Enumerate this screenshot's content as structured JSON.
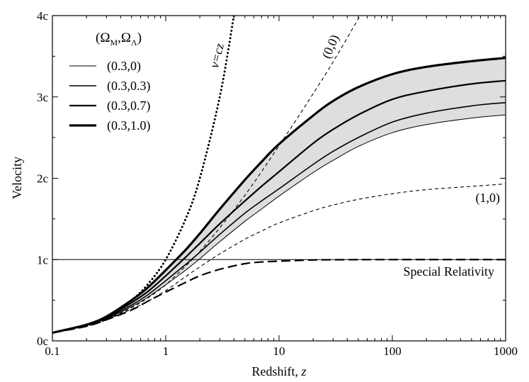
{
  "chart_data": {
    "type": "line",
    "xscale": "log",
    "xlim": [
      0.1,
      1000
    ],
    "ylim": [
      0,
      4
    ],
    "xlabel": "Redshift, ",
    "xlabel_var": "z",
    "ylabel": "Velocity",
    "x_ticks": [
      {
        "value": 0.1,
        "label": "0.1"
      },
      {
        "value": 1,
        "label": "1"
      },
      {
        "value": 10,
        "label": "10"
      },
      {
        "value": 100,
        "label": "100"
      },
      {
        "value": 1000,
        "label": "1000"
      }
    ],
    "y_ticks": [
      {
        "value": 0,
        "label": "0c"
      },
      {
        "value": 1,
        "label": "1c"
      },
      {
        "value": 2,
        "label": "2c"
      },
      {
        "value": 3,
        "label": "3c"
      },
      {
        "value": 4,
        "label": "4c"
      }
    ],
    "legend": {
      "title": "(Ω",
      "title_sub1": "M",
      "title_mid": ",Ω",
      "title_sub2": "Λ",
      "title_end": ")",
      "placement": "top-left",
      "entries": [
        "(0.3,0)",
        "(0.3,0.3)",
        "(0.3,0.7)",
        "(0.3,1.0)"
      ]
    },
    "shaded_band": {
      "between": [
        "(0.3,0)",
        "(0.3,1.0)"
      ],
      "color": "#dedede"
    },
    "annotations": [
      {
        "text": "v=cz",
        "series": "v=cz"
      },
      {
        "text": "(0,0)",
        "series": "(0,0)"
      },
      {
        "text": "(1,0)",
        "series": "(1,0)"
      },
      {
        "text": "Special Relativity",
        "series": "Special Relativity"
      }
    ],
    "series": [
      {
        "name": "(0.3,0)",
        "style": "solid",
        "width": 1.0,
        "x": [
          0.1,
          0.2,
          0.3,
          0.5,
          0.7,
          1,
          1.5,
          2,
          3,
          5,
          7,
          10,
          20,
          30,
          50,
          100,
          200,
          500,
          1000
        ],
        "y": [
          0.1,
          0.19,
          0.27,
          0.42,
          0.54,
          0.69,
          0.87,
          1.01,
          1.22,
          1.47,
          1.62,
          1.78,
          2.07,
          2.22,
          2.39,
          2.56,
          2.66,
          2.74,
          2.78
        ]
      },
      {
        "name": "(0.3,0.3)",
        "style": "solid",
        "width": 1.6,
        "x": [
          0.1,
          0.2,
          0.3,
          0.5,
          0.7,
          1,
          1.5,
          2,
          3,
          5,
          7,
          10,
          20,
          30,
          50,
          100,
          200,
          500,
          1000
        ],
        "y": [
          0.1,
          0.19,
          0.28,
          0.44,
          0.57,
          0.74,
          0.94,
          1.09,
          1.31,
          1.57,
          1.72,
          1.87,
          2.17,
          2.33,
          2.5,
          2.69,
          2.8,
          2.89,
          2.93
        ]
      },
      {
        "name": "(0.3,0.7)",
        "style": "solid",
        "width": 2.2,
        "x": [
          0.1,
          0.2,
          0.3,
          0.5,
          0.7,
          1,
          1.5,
          2,
          3,
          5,
          7,
          10,
          20,
          30,
          50,
          100,
          200,
          500,
          1000
        ],
        "y": [
          0.1,
          0.2,
          0.29,
          0.47,
          0.61,
          0.8,
          1.03,
          1.2,
          1.44,
          1.72,
          1.9,
          2.08,
          2.43,
          2.6,
          2.78,
          2.97,
          3.07,
          3.16,
          3.2
        ]
      },
      {
        "name": "(0.3,1.0)",
        "style": "solid",
        "width": 3.2,
        "x": [
          0.1,
          0.2,
          0.3,
          0.5,
          0.7,
          1,
          1.5,
          2,
          3,
          5,
          7,
          10,
          20,
          30,
          50,
          100,
          200,
          500,
          1000
        ],
        "y": [
          0.1,
          0.2,
          0.3,
          0.5,
          0.66,
          0.87,
          1.12,
          1.32,
          1.62,
          1.98,
          2.2,
          2.42,
          2.77,
          2.95,
          3.12,
          3.28,
          3.37,
          3.44,
          3.48
        ]
      },
      {
        "name": "v=cz",
        "style": "dotted",
        "width": 3.0,
        "x": [
          0.1,
          0.2,
          0.3,
          0.5,
          0.7,
          1,
          1.5,
          2,
          3,
          4
        ],
        "y": [
          0.1,
          0.2,
          0.3,
          0.5,
          0.7,
          1.0,
          1.5,
          2.0,
          3.0,
          4.0
        ]
      },
      {
        "name": "(0,0)",
        "style": "dashed",
        "width": 1.1,
        "x": [
          0.1,
          0.2,
          0.3,
          0.5,
          0.7,
          1,
          1.5,
          2,
          3,
          5,
          7,
          10,
          15,
          20,
          30,
          52
        ],
        "y": [
          0.1,
          0.18,
          0.26,
          0.41,
          0.53,
          0.69,
          0.92,
          1.1,
          1.39,
          1.79,
          2.08,
          2.4,
          2.77,
          3.04,
          3.43,
          4.0
        ]
      },
      {
        "name": "(1,0)",
        "style": "dashed",
        "width": 1.1,
        "x": [
          0.1,
          0.2,
          0.3,
          0.5,
          0.7,
          1,
          1.5,
          2,
          3,
          5,
          7,
          10,
          20,
          30,
          50,
          100,
          200,
          500,
          1000
        ],
        "y": [
          0.1,
          0.18,
          0.26,
          0.39,
          0.49,
          0.62,
          0.79,
          0.91,
          1.07,
          1.25,
          1.35,
          1.45,
          1.6,
          1.67,
          1.74,
          1.81,
          1.86,
          1.9,
          1.93
        ]
      },
      {
        "name": "Special Relativity",
        "style": "longdash",
        "width": 2.2,
        "x": [
          0.1,
          0.2,
          0.3,
          0.5,
          0.7,
          1,
          1.5,
          2,
          3,
          5,
          7,
          10,
          20,
          50,
          100,
          1000
        ],
        "y": [
          0.1,
          0.18,
          0.26,
          0.38,
          0.49,
          0.6,
          0.72,
          0.8,
          0.88,
          0.95,
          0.97,
          0.98,
          0.995,
          0.999,
          1.0,
          1.0
        ]
      },
      {
        "name": "c",
        "style": "solid",
        "width": 1.0,
        "x": [
          0.1,
          1000
        ],
        "y": [
          1,
          1
        ]
      }
    ]
  }
}
